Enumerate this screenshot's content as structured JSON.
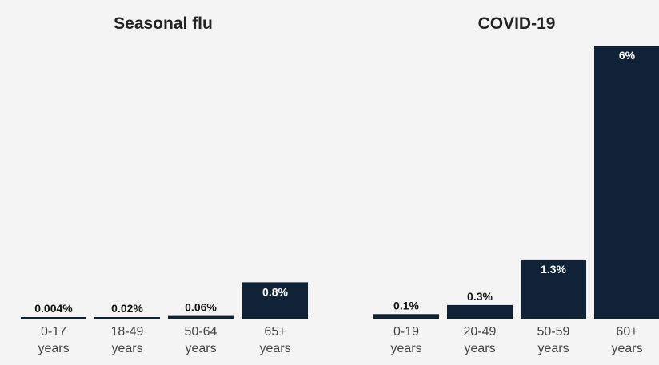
{
  "colors": {
    "bar": "#0f2236",
    "value_inside": "#ffffff",
    "value_outside": "#111111",
    "tick": "#444444",
    "title": "#222222",
    "background": "#f4f4f4"
  },
  "chart_data": [
    {
      "type": "bar",
      "title": "Seasonal flu",
      "unit": "%",
      "categories": [
        [
          "0-17",
          "years"
        ],
        [
          "18-49",
          "years"
        ],
        [
          "50-64",
          "years"
        ],
        [
          "65+",
          "years"
        ]
      ],
      "values": [
        0.004,
        0.02,
        0.06,
        0.8
      ],
      "value_labels": [
        "0.004%",
        "0.02%",
        "0.06%",
        "0.8%"
      ],
      "ylim": [
        0,
        6
      ],
      "grid": false,
      "legend": "none"
    },
    {
      "type": "bar",
      "title": "COVID-19",
      "unit": "%",
      "categories": [
        [
          "0-19",
          "years"
        ],
        [
          "20-49",
          "years"
        ],
        [
          "50-59",
          "years"
        ],
        [
          "60+",
          "years"
        ]
      ],
      "values": [
        0.1,
        0.3,
        1.3,
        6
      ],
      "value_labels": [
        "0.1%",
        "0.3%",
        "1.3%",
        "6%"
      ],
      "ylim": [
        0,
        6
      ],
      "grid": false,
      "legend": "none"
    }
  ]
}
